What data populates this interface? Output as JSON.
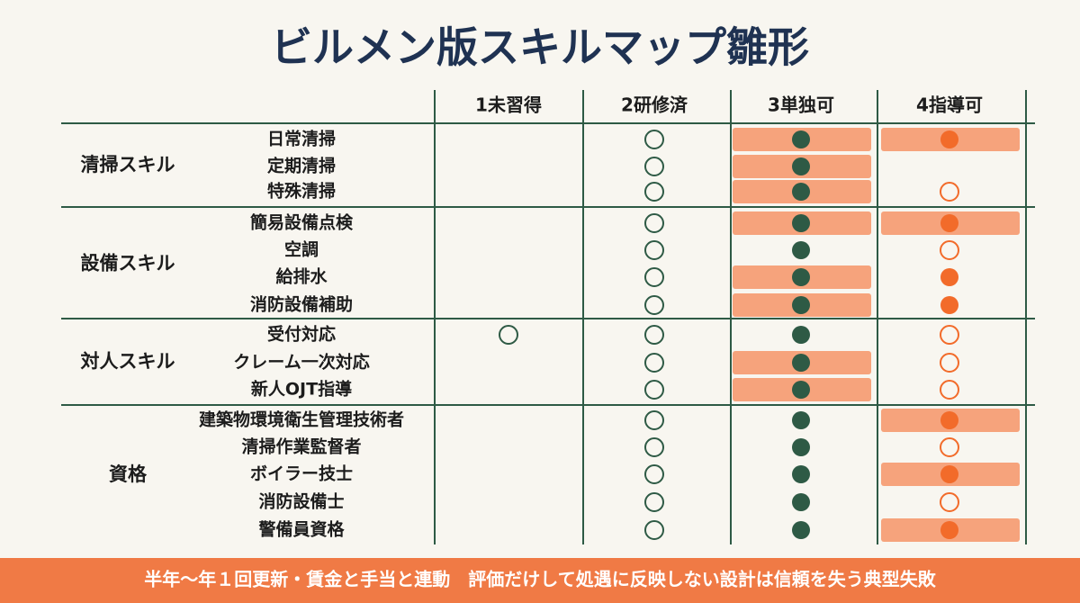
{
  "title": "ビルメン版スキルマップ雛形",
  "columns": [
    "1未習得",
    "2研修済",
    "3単独可",
    "4指導可"
  ],
  "groups": [
    {
      "label": "清掃スキル",
      "rows": [
        "日常清掃",
        "定期清掃",
        "特殊清掃"
      ]
    },
    {
      "label": "設備スキル",
      "rows": [
        "簡易設備点検",
        "空調",
        "給排水",
        "消防設備補助"
      ]
    },
    {
      "label": "対人スキル",
      "rows": [
        "受付対応",
        "クレーム一次対応",
        "新人OJT指導"
      ]
    },
    {
      "label": "資格",
      "rows": [
        "建築物環境衛生管理技術者",
        "清掃作業監督者",
        "ボイラー技士",
        "消防設備士",
        "警備員資格"
      ]
    }
  ],
  "footer": "半年〜年１回更新・賃金と手当と連動　評価だけして処遇に反映しない設計は信頼を失う典型失敗"
}
